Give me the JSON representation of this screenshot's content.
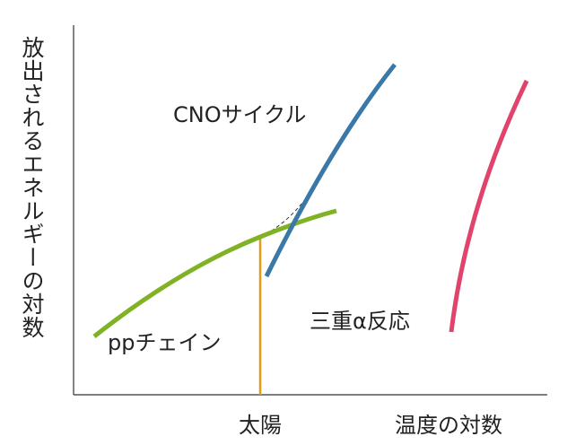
{
  "axes": {
    "y_label": "放出されるエネルギーの対数",
    "x_label": "温度の対数"
  },
  "marker": {
    "label": "太陽"
  },
  "curves": [
    {
      "label": "ppチェイン"
    },
    {
      "label": "CNOサイクル"
    },
    {
      "label": "三重α反応"
    }
  ]
}
